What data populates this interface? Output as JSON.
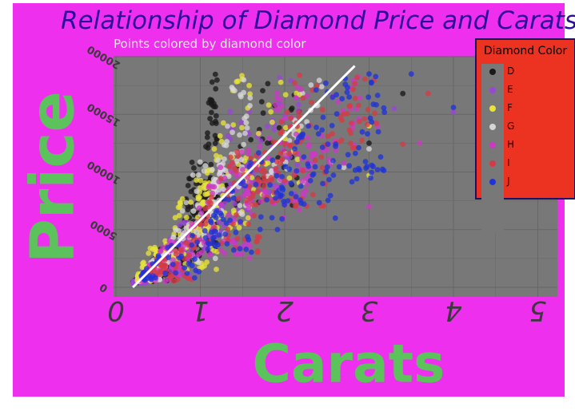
{
  "colors": {
    "figure_bg": "#ee30ee",
    "plot_bg": "#787878",
    "grid": "#666666",
    "title": "#2b0c9c",
    "subtitle": "#e6e6e6",
    "axis_label": "#5cc35c",
    "tick_label": "#3a3a3a",
    "legend_bg": "#ec3221",
    "legend_border": "#1b1464",
    "trend": "#ffffff"
  },
  "chart_data": {
    "type": "scatter",
    "title": "Relationship of Diamond Price and Carats",
    "subtitle": "Points colored by diamond color",
    "xlabel": "Carats",
    "ylabel": "Price",
    "xlim": [
      -0.05,
      5.25
    ],
    "ylim": [
      -500,
      20700
    ],
    "x_ticks": [
      0,
      1,
      2,
      3,
      4,
      5
    ],
    "y_ticks": [
      0,
      5000,
      10000,
      15000,
      20000
    ],
    "x_tick_labels": [
      "0",
      "1",
      "2",
      "3",
      "4",
      "5"
    ],
    "y_tick_labels": [
      "0",
      "5000",
      "10000",
      "15000",
      "20000"
    ],
    "grid": true,
    "legend_title": "Diamond Color",
    "legend_position": "right, outside top",
    "trend_line": {
      "x": [
        0.2,
        2.83
      ],
      "y": [
        0,
        19200
      ]
    },
    "series": [
      {
        "name": "D",
        "color": "#1a1a1a",
        "clusters": [
          [
            0.2,
            0.35,
            400,
            1000,
            70
          ],
          [
            0.3,
            0.7,
            500,
            3500,
            80
          ],
          [
            0.7,
            1.02,
            2000,
            11000,
            90
          ],
          [
            1.0,
            1.2,
            3000,
            18500,
            90
          ],
          [
            1.2,
            2.2,
            7000,
            18500,
            40
          ]
        ],
        "points": [
          [
            3.4,
            16800
          ],
          [
            3.0,
            12500
          ]
        ]
      },
      {
        "name": "E",
        "color": "#9a46d6",
        "clusters": [
          [
            0.2,
            0.4,
            350,
            1200,
            60
          ],
          [
            0.4,
            1.0,
            800,
            6000,
            70
          ],
          [
            1.0,
            1.6,
            3000,
            16000,
            70
          ],
          [
            1.5,
            2.2,
            8000,
            18500,
            40
          ]
        ],
        "points": [
          [
            3.3,
            15500
          ],
          [
            4.0,
            15200
          ]
        ]
      },
      {
        "name": "F",
        "color": "#e8e33a",
        "clusters": [
          [
            0.25,
            0.5,
            500,
            3500,
            60
          ],
          [
            0.5,
            1.2,
            1500,
            11000,
            80
          ],
          [
            1.0,
            1.6,
            5000,
            18500,
            70
          ],
          [
            1.5,
            2.2,
            8000,
            18500,
            30
          ]
        ],
        "points": [
          [
            3.0,
            9700
          ],
          [
            3.0,
            14000
          ]
        ]
      },
      {
        "name": "G",
        "color": "#d6d6d6",
        "clusters": [
          [
            0.3,
            0.6,
            600,
            3000,
            50
          ],
          [
            0.6,
            1.3,
            2000,
            12000,
            60
          ],
          [
            1.1,
            1.6,
            6000,
            18500,
            70
          ],
          [
            1.8,
            2.6,
            9000,
            18000,
            30
          ]
        ],
        "points": [
          [
            2.7,
            10400
          ],
          [
            3.0,
            12000
          ]
        ]
      },
      {
        "name": "H",
        "color": "#cd38c5",
        "clusters": [
          [
            0.3,
            0.8,
            500,
            4000,
            60
          ],
          [
            0.8,
            1.6,
            2500,
            12000,
            70
          ],
          [
            1.5,
            2.3,
            6000,
            18500,
            70
          ],
          [
            2.3,
            2.9,
            10000,
            18500,
            30
          ]
        ],
        "points": [
          [
            3.0,
            7000
          ],
          [
            3.6,
            12500
          ],
          [
            3.1,
            14000
          ]
        ]
      },
      {
        "name": "I",
        "color": "#d53b46",
        "clusters": [
          [
            0.3,
            0.9,
            500,
            4000,
            50
          ],
          [
            0.9,
            1.7,
            3000,
            12000,
            60
          ],
          [
            1.6,
            2.5,
            7000,
            18500,
            80
          ],
          [
            2.5,
            3.1,
            12000,
            18500,
            30
          ]
        ],
        "points": [
          [
            3.7,
            16800
          ],
          [
            3.4,
            12400
          ],
          [
            4.5,
            16500
          ]
        ]
      },
      {
        "name": "J",
        "color": "#2033d6",
        "clusters": [
          [
            0.3,
            1.0,
            600,
            4500,
            40
          ],
          [
            1.0,
            2.0,
            3000,
            12000,
            60
          ],
          [
            1.9,
            2.8,
            7000,
            18500,
            70
          ],
          [
            2.8,
            3.2,
            9000,
            18500,
            30
          ]
        ],
        "points": [
          [
            3.5,
            18500
          ],
          [
            4.0,
            15600
          ],
          [
            5.0,
            18000
          ],
          [
            3.0,
            18500
          ],
          [
            3.1,
            10200
          ],
          [
            2.6,
            6000
          ]
        ]
      }
    ]
  }
}
